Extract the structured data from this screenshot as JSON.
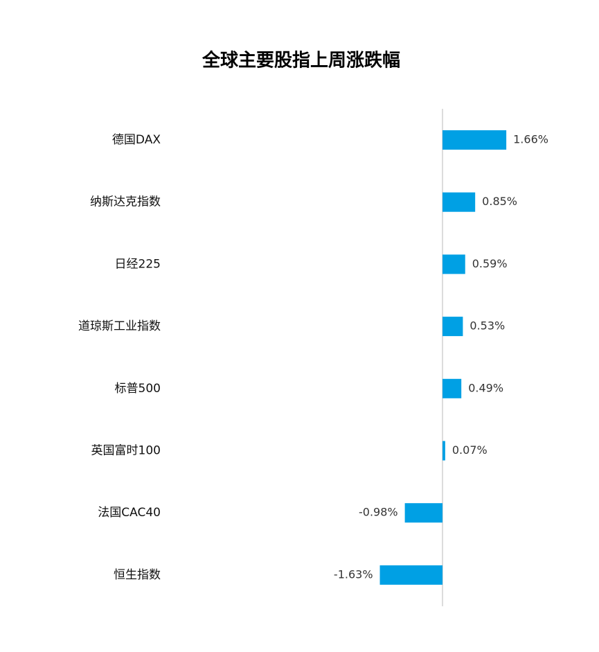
{
  "chart_data": {
    "type": "hbar",
    "title": "全球主要股指上周涨跌幅",
    "categories": [
      "德国DAX",
      "纳斯达克指数",
      "日经225",
      "道琼斯工业指数",
      "标普500",
      "英国富时100",
      "法国CAC40",
      "恒生指数"
    ],
    "values": [
      1.66,
      0.85,
      0.59,
      0.53,
      0.49,
      0.07,
      -0.98,
      -1.63
    ],
    "value_labels": [
      "1.66%",
      "0.85%",
      "0.59%",
      "0.53%",
      "0.49%",
      "0.07%",
      "-0.98%",
      "-1.63%"
    ],
    "color": "#00a0e4"
  }
}
